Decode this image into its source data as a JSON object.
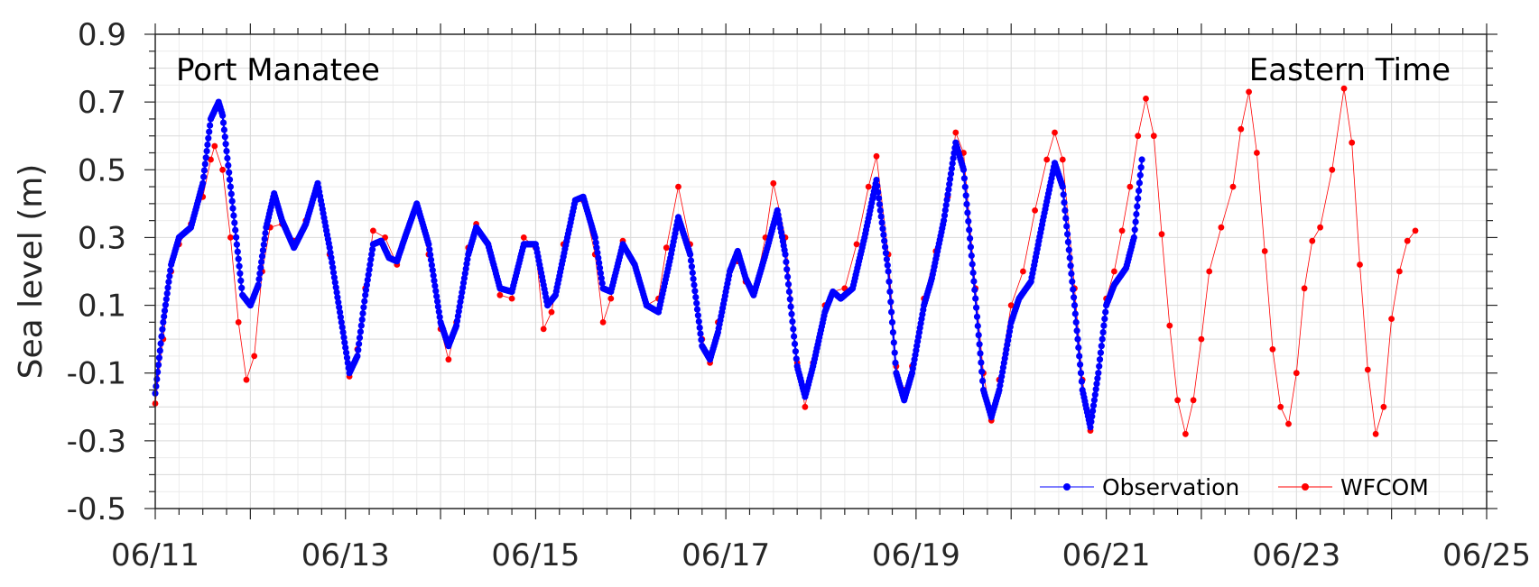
{
  "chart_data": {
    "type": "line",
    "title": "",
    "xlabel": "",
    "ylabel": "Sea level (m)",
    "annotations": {
      "station": "Port Manatee",
      "timezone": "Eastern Time"
    },
    "x_ticks": [
      "06/11",
      "06/13",
      "06/15",
      "06/17",
      "06/19",
      "06/21",
      "06/23",
      "06/25"
    ],
    "y_ticks": [
      "0.9",
      "0.7",
      "0.5",
      "0.3",
      "0.1",
      "-0.1",
      "-0.3",
      "-0.5"
    ],
    "xlim": [
      "06/11 00:00",
      "06/25 00:00"
    ],
    "ylim": [
      -0.5,
      0.9
    ],
    "grid": true,
    "legend_position": "bottom-right",
    "series": [
      {
        "name": "Observation",
        "color": "#0000ff",
        "marker": "dot",
        "points": [
          [
            "06/11 00:00",
            -0.16
          ],
          [
            "06/11 02:00",
            0.05
          ],
          [
            "06/11 04:00",
            0.22
          ],
          [
            "06/11 06:00",
            0.3
          ],
          [
            "06/11 09:00",
            0.33
          ],
          [
            "06/11 12:00",
            0.46
          ],
          [
            "06/11 14:00",
            0.65
          ],
          [
            "06/11 16:00",
            0.7
          ],
          [
            "06/11 17:00",
            0.66
          ],
          [
            "06/11 19:00",
            0.45
          ],
          [
            "06/11 22:00",
            0.13
          ],
          [
            "06/12 00:00",
            0.1
          ],
          [
            "06/12 02:00",
            0.16
          ],
          [
            "06/12 04:00",
            0.33
          ],
          [
            "06/12 06:00",
            0.43
          ],
          [
            "06/12 08:00",
            0.35
          ],
          [
            "06/12 11:00",
            0.27
          ],
          [
            "06/12 14:00",
            0.34
          ],
          [
            "06/12 17:00",
            0.46
          ],
          [
            "06/12 20:00",
            0.27
          ],
          [
            "06/12 23:00",
            0.05
          ],
          [
            "06/13 01:00",
            -0.1
          ],
          [
            "06/13 03:00",
            -0.05
          ],
          [
            "06/13 05:00",
            0.13
          ],
          [
            "06/13 07:00",
            0.28
          ],
          [
            "06/13 09:00",
            0.29
          ],
          [
            "06/13 11:00",
            0.24
          ],
          [
            "06/13 13:00",
            0.23
          ],
          [
            "06/13 15:00",
            0.3
          ],
          [
            "06/13 18:00",
            0.4
          ],
          [
            "06/13 21:00",
            0.28
          ],
          [
            "06/14 00:00",
            0.05
          ],
          [
            "06/14 02:00",
            -0.02
          ],
          [
            "06/14 04:00",
            0.04
          ],
          [
            "06/14 07:00",
            0.25
          ],
          [
            "06/14 09:00",
            0.33
          ],
          [
            "06/14 12:00",
            0.28
          ],
          [
            "06/14 15:00",
            0.15
          ],
          [
            "06/14 18:00",
            0.14
          ],
          [
            "06/14 21:00",
            0.28
          ],
          [
            "06/15 00:00",
            0.28
          ],
          [
            "06/15 03:00",
            0.1
          ],
          [
            "06/15 05:00",
            0.13
          ],
          [
            "06/15 08:00",
            0.3
          ],
          [
            "06/15 10:00",
            0.41
          ],
          [
            "06/15 12:00",
            0.42
          ],
          [
            "06/15 15:00",
            0.3
          ],
          [
            "06/15 17:00",
            0.15
          ],
          [
            "06/15 19:00",
            0.14
          ],
          [
            "06/15 22:00",
            0.28
          ],
          [
            "06/16 01:00",
            0.22
          ],
          [
            "06/16 04:00",
            0.1
          ],
          [
            "06/16 07:00",
            0.08
          ],
          [
            "06/16 10:00",
            0.24
          ],
          [
            "06/16 12:00",
            0.36
          ],
          [
            "06/16 15:00",
            0.25
          ],
          [
            "06/16 18:00",
            -0.02
          ],
          [
            "06/16 20:00",
            -0.06
          ],
          [
            "06/16 22:00",
            0.02
          ],
          [
            "06/17 01:00",
            0.2
          ],
          [
            "06/17 03:00",
            0.26
          ],
          [
            "06/17 05:00",
            0.18
          ],
          [
            "06/17 07:00",
            0.13
          ],
          [
            "06/17 10:00",
            0.25
          ],
          [
            "06/17 13:00",
            0.38
          ],
          [
            "06/17 15:00",
            0.25
          ],
          [
            "06/17 18:00",
            -0.08
          ],
          [
            "06/17 20:00",
            -0.17
          ],
          [
            "06/17 22:00",
            -0.08
          ],
          [
            "06/18 01:00",
            0.08
          ],
          [
            "06/18 03:00",
            0.14
          ],
          [
            "06/18 05:00",
            0.12
          ],
          [
            "06/18 08:00",
            0.15
          ],
          [
            "06/18 11:00",
            0.3
          ],
          [
            "06/18 14:00",
            0.47
          ],
          [
            "06/18 17:00",
            0.2
          ],
          [
            "06/18 19:00",
            -0.1
          ],
          [
            "06/18 21:00",
            -0.18
          ],
          [
            "06/18 23:00",
            -0.1
          ],
          [
            "06/19 02:00",
            0.1
          ],
          [
            "06/19 04:00",
            0.18
          ],
          [
            "06/19 07:00",
            0.35
          ],
          [
            "06/19 10:00",
            0.58
          ],
          [
            "06/19 12:00",
            0.5
          ],
          [
            "06/19 15:00",
            0.12
          ],
          [
            "06/19 17:00",
            -0.15
          ],
          [
            "06/19 19:00",
            -0.23
          ],
          [
            "06/19 21:00",
            -0.15
          ],
          [
            "06/20 00:00",
            0.05
          ],
          [
            "06/20 02:00",
            0.12
          ],
          [
            "06/20 05:00",
            0.17
          ],
          [
            "06/20 08:00",
            0.35
          ],
          [
            "06/20 11:00",
            0.52
          ],
          [
            "06/20 13:00",
            0.45
          ],
          [
            "06/20 16:00",
            0.1
          ],
          [
            "06/20 18:00",
            -0.15
          ],
          [
            "06/20 20:00",
            -0.26
          ],
          [
            "06/20 22:00",
            -0.1
          ],
          [
            "06/21 00:00",
            0.1
          ],
          [
            "06/21 02:00",
            0.16
          ],
          [
            "06/21 05:00",
            0.21
          ],
          [
            "06/21 07:00",
            0.3
          ],
          [
            "06/21 09:00",
            0.53
          ]
        ]
      },
      {
        "name": "WFCOM",
        "color": "#ff0000",
        "marker": "dot",
        "points": [
          [
            "06/11 00:00",
            -0.19
          ],
          [
            "06/11 02:00",
            0.0
          ],
          [
            "06/11 04:00",
            0.2
          ],
          [
            "06/11 06:00",
            0.28
          ],
          [
            "06/11 09:00",
            0.34
          ],
          [
            "06/11 12:00",
            0.42
          ],
          [
            "06/11 14:00",
            0.53
          ],
          [
            "06/11 15:00",
            0.57
          ],
          [
            "06/11 17:00",
            0.5
          ],
          [
            "06/11 19:00",
            0.3
          ],
          [
            "06/11 21:00",
            0.05
          ],
          [
            "06/11 23:00",
            -0.12
          ],
          [
            "06/12 01:00",
            -0.05
          ],
          [
            "06/12 03:00",
            0.2
          ],
          [
            "06/12 05:00",
            0.33
          ],
          [
            "06/12 08:00",
            0.34
          ],
          [
            "06/12 11:00",
            0.29
          ],
          [
            "06/12 14:00",
            0.35
          ],
          [
            "06/12 17:00",
            0.45
          ],
          [
            "06/12 20:00",
            0.25
          ],
          [
            "06/12 23:00",
            0.05
          ],
          [
            "06/13 01:00",
            -0.11
          ],
          [
            "06/13 03:00",
            -0.03
          ],
          [
            "06/13 05:00",
            0.15
          ],
          [
            "06/13 07:00",
            0.32
          ],
          [
            "06/13 10:00",
            0.3
          ],
          [
            "06/13 13:00",
            0.22
          ],
          [
            "06/13 15:00",
            0.3
          ],
          [
            "06/13 18:00",
            0.39
          ],
          [
            "06/13 21:00",
            0.25
          ],
          [
            "06/14 00:00",
            0.03
          ],
          [
            "06/14 02:00",
            -0.06
          ],
          [
            "06/14 04:00",
            0.05
          ],
          [
            "06/14 07:00",
            0.27
          ],
          [
            "06/14 09:00",
            0.34
          ],
          [
            "06/14 12:00",
            0.28
          ],
          [
            "06/14 15:00",
            0.13
          ],
          [
            "06/14 18:00",
            0.12
          ],
          [
            "06/14 21:00",
            0.3
          ],
          [
            "06/15 00:00",
            0.27
          ],
          [
            "06/15 02:00",
            0.03
          ],
          [
            "06/15 04:00",
            0.08
          ],
          [
            "06/15 07:00",
            0.28
          ],
          [
            "06/15 10:00",
            0.41
          ],
          [
            "06/15 12:00",
            0.41
          ],
          [
            "06/15 15:00",
            0.25
          ],
          [
            "06/15 17:00",
            0.05
          ],
          [
            "06/15 19:00",
            0.12
          ],
          [
            "06/15 22:00",
            0.29
          ],
          [
            "06/16 01:00",
            0.22
          ],
          [
            "06/16 04:00",
            0.1
          ],
          [
            "06/16 07:00",
            0.12
          ],
          [
            "06/16 09:00",
            0.27
          ],
          [
            "06/16 12:00",
            0.45
          ],
          [
            "06/16 15:00",
            0.28
          ],
          [
            "06/16 18:00",
            0.0
          ],
          [
            "06/16 20:00",
            -0.07
          ],
          [
            "06/16 22:00",
            0.05
          ],
          [
            "06/17 01:00",
            0.2
          ],
          [
            "06/17 03:00",
            0.23
          ],
          [
            "06/17 05:00",
            0.17
          ],
          [
            "06/17 07:00",
            0.13
          ],
          [
            "06/17 10:00",
            0.3
          ],
          [
            "06/17 12:00",
            0.46
          ],
          [
            "06/17 15:00",
            0.3
          ],
          [
            "06/17 18:00",
            -0.07
          ],
          [
            "06/17 20:00",
            -0.2
          ],
          [
            "06/17 22:00",
            -0.07
          ],
          [
            "06/18 01:00",
            0.1
          ],
          [
            "06/18 03:00",
            0.14
          ],
          [
            "06/18 06:00",
            0.15
          ],
          [
            "06/18 09:00",
            0.28
          ],
          [
            "06/18 12:00",
            0.45
          ],
          [
            "06/18 14:00",
            0.54
          ],
          [
            "06/18 17:00",
            0.25
          ],
          [
            "06/18 19:00",
            -0.08
          ],
          [
            "06/18 21:00",
            -0.15
          ],
          [
            "06/18 23:00",
            -0.08
          ],
          [
            "06/19 02:00",
            0.12
          ],
          [
            "06/19 05:00",
            0.26
          ],
          [
            "06/19 08:00",
            0.42
          ],
          [
            "06/19 10:00",
            0.61
          ],
          [
            "06/19 12:00",
            0.55
          ],
          [
            "06/19 15:00",
            0.15
          ],
          [
            "06/19 17:00",
            -0.1
          ],
          [
            "06/19 19:00",
            -0.24
          ],
          [
            "06/19 21:00",
            -0.12
          ],
          [
            "06/20 00:00",
            0.1
          ],
          [
            "06/20 03:00",
            0.2
          ],
          [
            "06/20 06:00",
            0.38
          ],
          [
            "06/20 09:00",
            0.53
          ],
          [
            "06/20 11:00",
            0.61
          ],
          [
            "06/20 13:00",
            0.53
          ],
          [
            "06/20 16:00",
            0.15
          ],
          [
            "06/20 18:00",
            -0.12
          ],
          [
            "06/20 20:00",
            -0.27
          ],
          [
            "06/20 22:00",
            -0.1
          ],
          [
            "06/21 00:00",
            0.12
          ],
          [
            "06/21 02:00",
            0.2
          ],
          [
            "06/21 04:00",
            0.32
          ],
          [
            "06/21 06:00",
            0.45
          ],
          [
            "06/21 08:00",
            0.6
          ],
          [
            "06/21 10:00",
            0.71
          ],
          [
            "06/21 12:00",
            0.6
          ],
          [
            "06/21 14:00",
            0.31
          ],
          [
            "06/21 16:00",
            0.04
          ],
          [
            "06/21 18:00",
            -0.18
          ],
          [
            "06/21 20:00",
            -0.28
          ],
          [
            "06/21 22:00",
            -0.18
          ],
          [
            "06/22 00:00",
            0.0
          ],
          [
            "06/22 02:00",
            0.2
          ],
          [
            "06/22 05:00",
            0.33
          ],
          [
            "06/22 08:00",
            0.45
          ],
          [
            "06/22 10:00",
            0.62
          ],
          [
            "06/22 12:00",
            0.73
          ],
          [
            "06/22 14:00",
            0.55
          ],
          [
            "06/22 16:00",
            0.26
          ],
          [
            "06/22 18:00",
            -0.03
          ],
          [
            "06/22 20:00",
            -0.2
          ],
          [
            "06/22 22:00",
            -0.25
          ],
          [
            "06/23 00:00",
            -0.1
          ],
          [
            "06/23 02:00",
            0.15
          ],
          [
            "06/23 04:00",
            0.29
          ],
          [
            "06/23 06:00",
            0.33
          ],
          [
            "06/23 09:00",
            0.5
          ],
          [
            "06/23 12:00",
            0.74
          ],
          [
            "06/23 14:00",
            0.58
          ],
          [
            "06/23 16:00",
            0.22
          ],
          [
            "06/23 18:00",
            -0.09
          ],
          [
            "06/23 20:00",
            -0.28
          ],
          [
            "06/23 22:00",
            -0.2
          ],
          [
            "06/24 00:00",
            0.06
          ],
          [
            "06/24 02:00",
            0.2
          ],
          [
            "06/24 04:00",
            0.29
          ],
          [
            "06/24 06:00",
            0.32
          ]
        ]
      }
    ]
  }
}
